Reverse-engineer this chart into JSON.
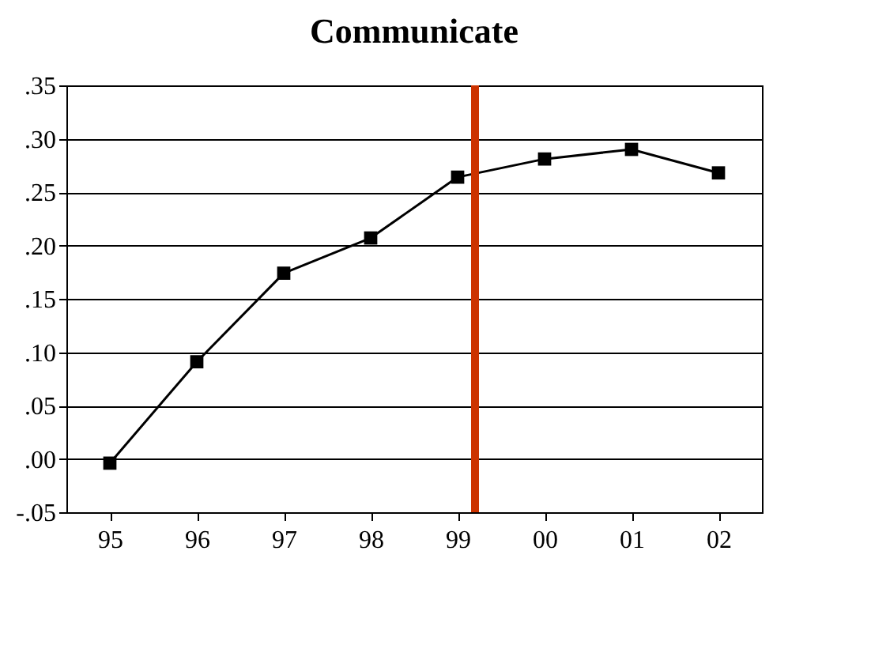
{
  "chart_data": {
    "type": "line",
    "title": "Communicate",
    "x": [
      1995,
      1996,
      1997,
      1998,
      1999,
      2000,
      2001,
      2002
    ],
    "xlim": [
      1994.5,
      2002.5
    ],
    "xticks": [
      {
        "value": 1995,
        "label": "95"
      },
      {
        "value": 1996,
        "label": "96"
      },
      {
        "value": 1997,
        "label": "97"
      },
      {
        "value": 1998,
        "label": "98"
      },
      {
        "value": 1999,
        "label": "99"
      },
      {
        "value": 2000,
        "label": "00"
      },
      {
        "value": 2001,
        "label": "01"
      },
      {
        "value": 2002,
        "label": "02"
      }
    ],
    "ylim": [
      -0.05,
      0.35
    ],
    "yticks": [
      {
        "value": -0.05,
        "label": "-.05"
      },
      {
        "value": 0,
        "label": ".00"
      },
      {
        "value": 0.05,
        "label": ".05"
      },
      {
        "value": 0.1,
        "label": ".10"
      },
      {
        "value": 0.15,
        "label": ".15"
      },
      {
        "value": 0.2,
        "label": ".20"
      },
      {
        "value": 0.25,
        "label": ".25"
      },
      {
        "value": 0.3,
        "label": ".30"
      },
      {
        "value": 0.35,
        "label": ".35"
      }
    ],
    "series": [
      {
        "color": "#000000",
        "values": [
          -0.004,
          0.091,
          0.174,
          0.207,
          0.264,
          0.281,
          0.29,
          0.268
        ]
      }
    ],
    "ref_lines": [
      {
        "axis": "x",
        "value": 1999.2,
        "color": "#cc3300"
      }
    ],
    "grid": "y",
    "marker": "square",
    "line_style": "solid"
  }
}
